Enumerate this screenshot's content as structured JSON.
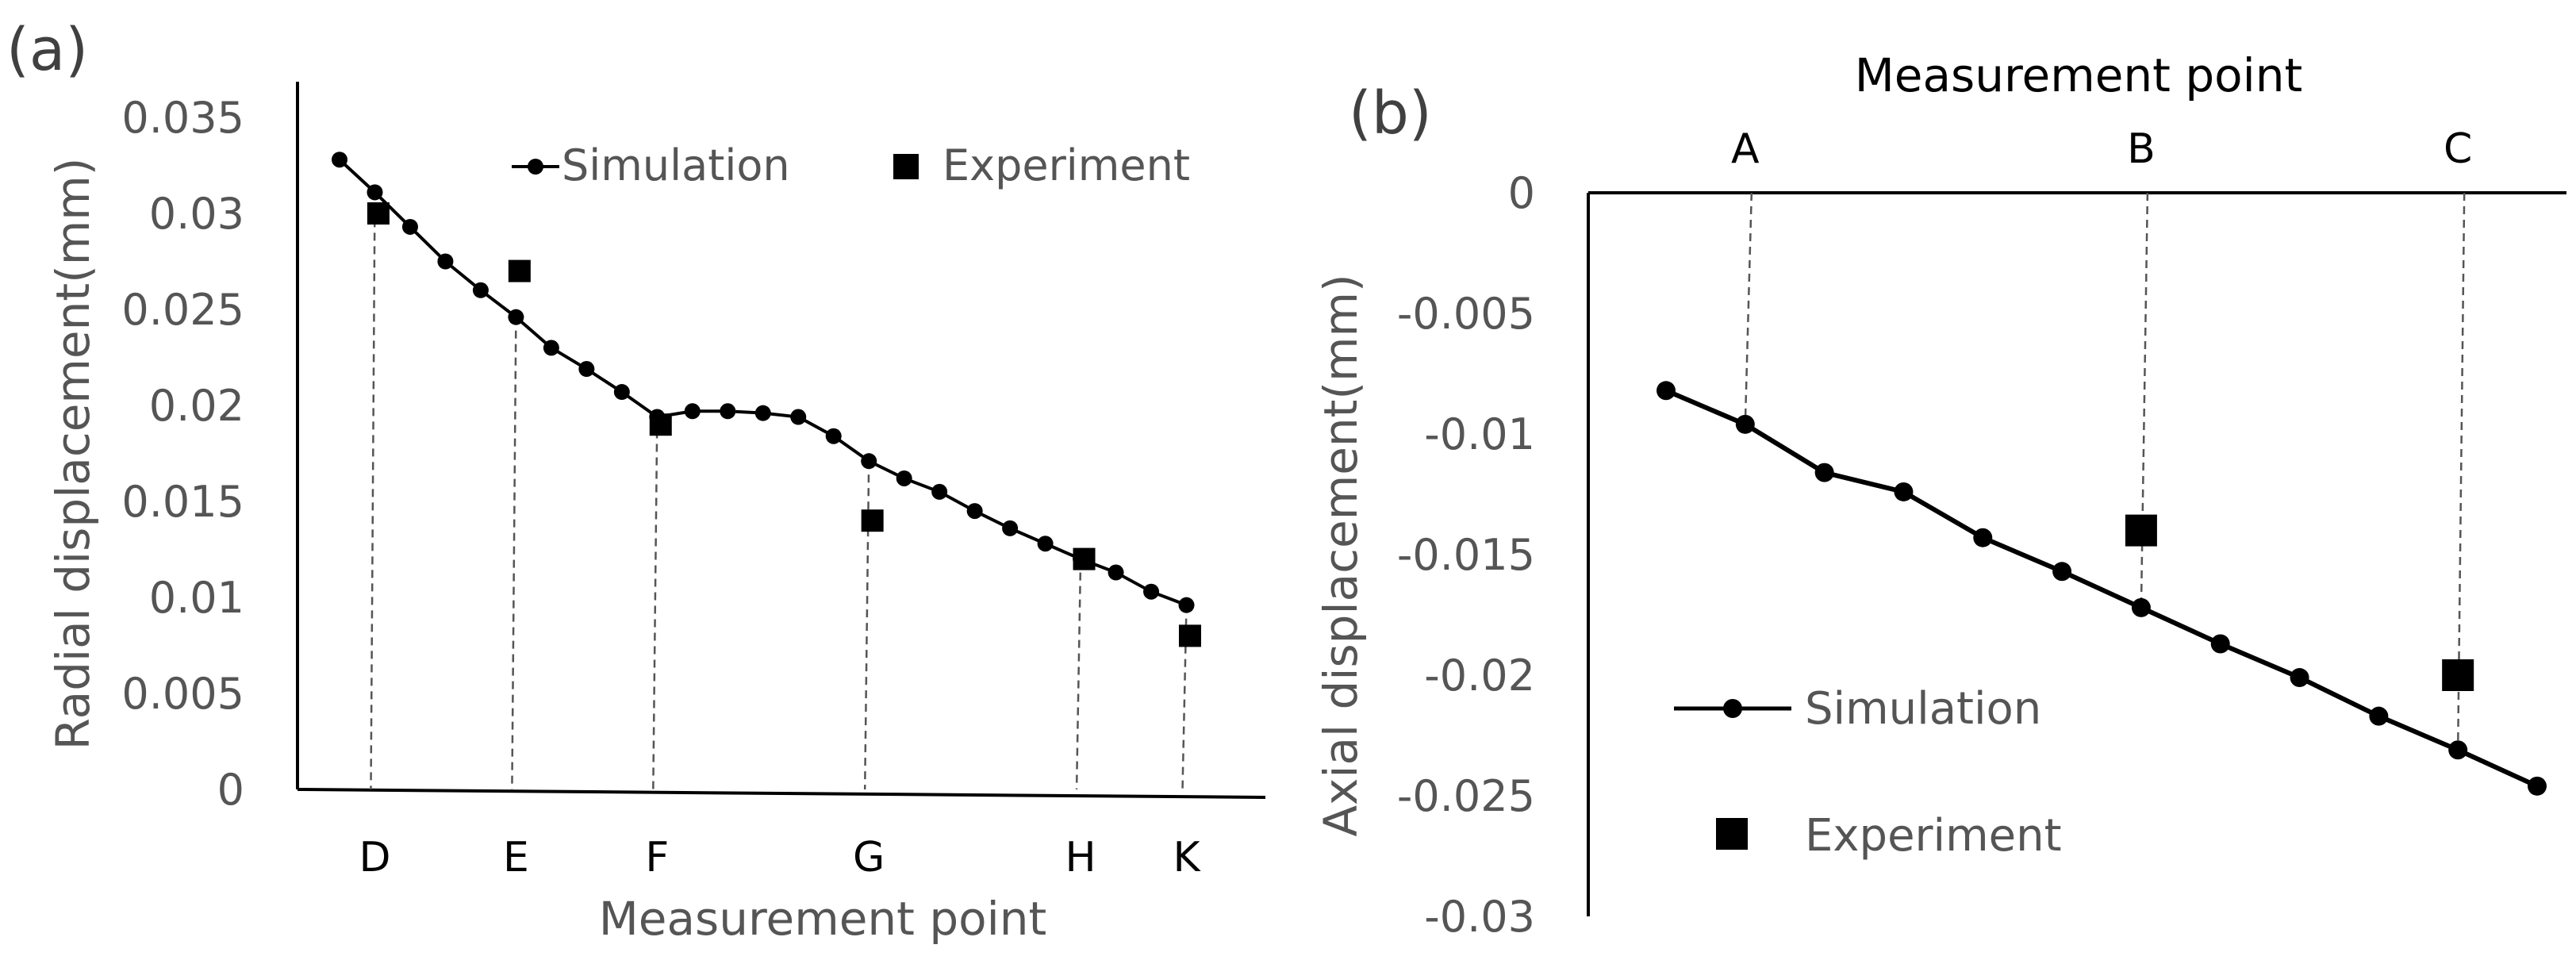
{
  "chart_data": [
    {
      "panel": "(a)",
      "type": "line",
      "ylabel": "Radial displacement(mm)",
      "xlabel": "Measurement point",
      "ylim": [
        0,
        0.035
      ],
      "yticks": [
        "0.035",
        "0.03",
        "0.025",
        "0.02",
        "0.015",
        "0.01",
        "0.005",
        "0"
      ],
      "legend": {
        "simulation": "Simulation",
        "experiment": "Experiment"
      },
      "points": [
        "D",
        "E",
        "F",
        "G",
        "H",
        "K"
      ],
      "x_range": [
        0,
        25
      ],
      "point_index": [
        1,
        5,
        9,
        15,
        21,
        24
      ],
      "simulation_x": [
        0,
        1,
        2,
        3,
        4,
        5,
        6,
        7,
        8,
        9,
        10,
        11,
        12,
        13,
        14,
        15,
        16,
        17,
        18,
        19,
        20,
        21,
        22,
        23,
        24
      ],
      "simulation": [
        0.0328,
        0.0311,
        0.0293,
        0.0275,
        0.026,
        0.0246,
        0.023,
        0.0219,
        0.0207,
        0.0194,
        0.0197,
        0.0197,
        0.0196,
        0.0194,
        0.0184,
        0.0171,
        0.0162,
        0.0155,
        0.0145,
        0.0136,
        0.0128,
        0.012,
        0.0113,
        0.0103,
        0.0096
      ],
      "experiment_x": [
        1.1,
        5.1,
        9.1,
        15.1,
        21.1,
        24.1
      ],
      "experiment": [
        0.03,
        0.027,
        0.019,
        0.014,
        0.012,
        0.008
      ]
    },
    {
      "panel": "(b)",
      "type": "line",
      "ylabel": "Axial displacement(mm)",
      "xlabel": "Measurement point",
      "ylim": [
        -0.03,
        0
      ],
      "yticks": [
        "0",
        "-0.005",
        "-0.01",
        "-0.015",
        "-0.02",
        "-0.025",
        "-0.03"
      ],
      "legend": {
        "simulation": "Simulation",
        "experiment": "Experiment"
      },
      "points": [
        "A",
        "B",
        "C"
      ],
      "x_range": [
        0,
        11
      ],
      "point_index": [
        1,
        6,
        10
      ],
      "simulation_x": [
        0,
        1,
        2,
        3,
        4,
        5,
        6,
        7,
        8,
        9,
        10,
        11
      ],
      "simulation": [
        -0.0082,
        -0.0096,
        -0.0116,
        -0.0124,
        -0.0143,
        -0.0157,
        -0.0172,
        -0.0187,
        -0.0201,
        -0.0217,
        -0.0231,
        -0.0246
      ],
      "experiment_x": [
        6,
        10
      ],
      "experiment": [
        -0.014,
        -0.02
      ]
    }
  ]
}
